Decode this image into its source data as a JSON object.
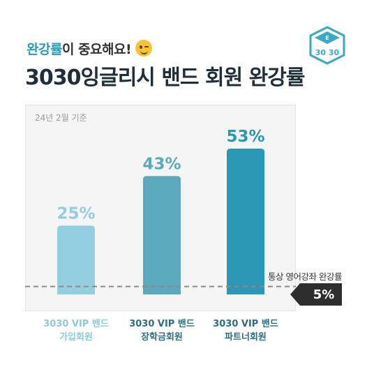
{
  "header": {
    "subtitle_accent": "완강률",
    "subtitle_rest": "이 중요해요!",
    "title": "3030잉글리시 밴드 회원 완강률",
    "emoji_icon": "winking-face-icon",
    "logo_text": "30 30"
  },
  "note": "24년 2월 기준",
  "reference": {
    "label": "통상 영어강좌 완강률",
    "value_label": "5%",
    "value": 5
  },
  "colors": {
    "accent": "#2a9bb9",
    "bars": [
      "#93cfe0",
      "#5aa9bd",
      "#2a98b4"
    ],
    "labels": [
      "#93cfe0",
      "#5aa9bd",
      "#2a98b4"
    ],
    "category_text": [
      "#8ccbdd",
      "#2f6f80",
      "#2a6f80"
    ]
  },
  "chart_data": {
    "type": "bar",
    "categories": [
      [
        "3030 VIP 밴드",
        "가입회원"
      ],
      [
        "3030 VIP 밴드",
        "장학금회원"
      ],
      [
        "3030 VIP 밴드",
        "파트너회원"
      ]
    ],
    "values": [
      25,
      43,
      53
    ],
    "data_labels": [
      "25%",
      "43%",
      "53%"
    ],
    "title": "3030잉글리시 밴드 회원 완강률",
    "xlabel": "",
    "ylabel": "",
    "ylim": [
      0,
      60
    ],
    "reference_line": 5,
    "grid": false,
    "legend": "none"
  }
}
